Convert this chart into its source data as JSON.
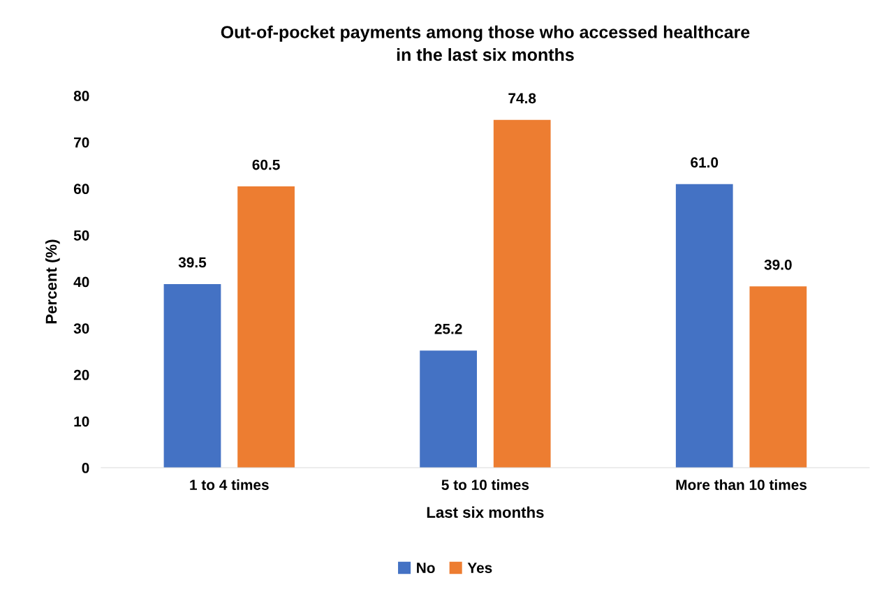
{
  "chart_data": {
    "type": "bar",
    "title": "Out-of-pocket payments among those who accessed healthcare\nin the last six months",
    "xlabel": "Last six months",
    "ylabel": "Percent (%)",
    "categories": [
      "1 to 4 times",
      "5 to 10 times",
      "More than 10 times"
    ],
    "series": [
      {
        "name": "No",
        "color": "#4472c4",
        "values": [
          39.5,
          25.2,
          61.0
        ],
        "value_labels": [
          "39.5",
          "25.2",
          "61.0"
        ]
      },
      {
        "name": "Yes",
        "color": "#ed7d31",
        "values": [
          60.5,
          74.8,
          39.0
        ],
        "value_labels": [
          "60.5",
          "74.8",
          "39.0"
        ]
      }
    ],
    "ylim": [
      0,
      80
    ],
    "yticks": [
      0,
      10,
      20,
      30,
      40,
      50,
      60,
      70,
      80
    ],
    "grid": false,
    "legend": "bottom"
  }
}
